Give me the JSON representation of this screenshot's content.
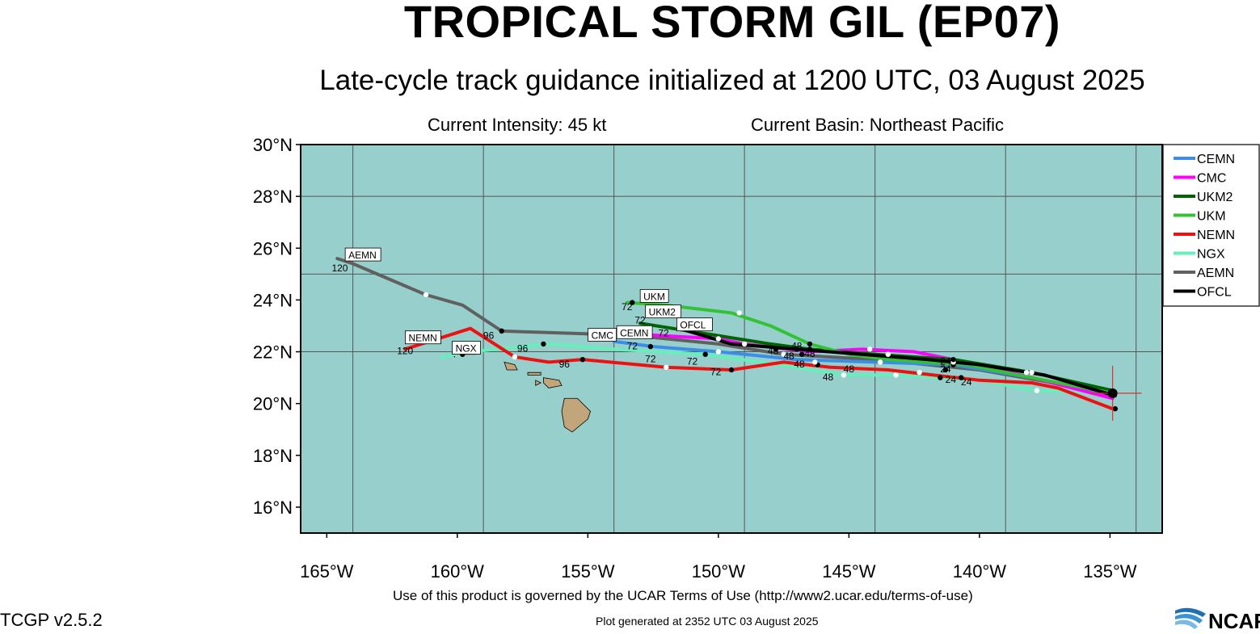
{
  "header": {
    "title": "TROPICAL STORM GIL (EP07)",
    "subtitle": "Late-cycle track guidance initialized at 1200 UTC, 03 August 2025",
    "current_intensity": "Current Intensity: 45 kt",
    "current_basin": "Current Basin: Northeast Pacific"
  },
  "footer": {
    "terms": "Use of this product is governed by the UCAR Terms of Use (http://www2.ucar.edu/terms-of-use)",
    "generated": "Plot generated at 2352 UTC   03 August 2025",
    "version": "TCGP v2.5.2",
    "logo_text": "NCAR"
  },
  "map": {
    "lon_range": [
      -166,
      -133
    ],
    "lat_range": [
      15,
      30
    ],
    "ocean_color": "#97cfcd",
    "land_color": "#c2a57a",
    "lat_ticks": [
      30,
      28,
      26,
      24,
      22,
      20,
      18,
      16
    ],
    "lat_tick_labels": [
      "30°N",
      "28°N",
      "26°N",
      "24°N",
      "22°N",
      "20°N",
      "18°N",
      "16°N"
    ],
    "lon_ticks": [
      -165,
      -160,
      -155,
      -150,
      -145,
      -140,
      -135
    ],
    "lon_tick_labels": [
      "165°W",
      "160°W",
      "155°W",
      "150°W",
      "145°W",
      "140°W",
      "135°W"
    ],
    "grid_lats": [
      22,
      25,
      28
    ],
    "grid_lons": [
      -164,
      -159,
      -154,
      -149,
      -144,
      -139,
      -134
    ],
    "storm_center": [
      -134.9,
      20.4
    ]
  },
  "legend": {
    "items": [
      {
        "name": "CEMN",
        "color": "#3a8ee6"
      },
      {
        "name": "CMC",
        "color": "#ff00ff"
      },
      {
        "name": "UKM2",
        "color": "#006400"
      },
      {
        "name": "UKM",
        "color": "#33c233"
      },
      {
        "name": "NEMN",
        "color": "#ee1111"
      },
      {
        "name": "NGX",
        "color": "#66eebb"
      },
      {
        "name": "AEMN",
        "color": "#606060"
      },
      {
        "name": "OFCL",
        "color": "#000000"
      }
    ]
  },
  "tracks": [
    {
      "name": "NGX",
      "color": "#66eebb",
      "points": [
        [
          -134.9,
          20.4
        ],
        [
          -137.8,
          20.5
        ],
        [
          -140.0,
          20.9
        ],
        [
          -141.5,
          21.0
        ],
        [
          -143.2,
          21.1
        ],
        [
          -145.2,
          21.1
        ],
        [
          -147.0,
          21.4
        ],
        [
          -150.5,
          21.9
        ],
        [
          -154.0,
          22.1
        ],
        [
          -156.5,
          22.3
        ],
        [
          -159.5,
          22.0
        ],
        [
          -160.6,
          21.8
        ]
      ],
      "markers": [
        [
          -137.8,
          20.5,
          "w"
        ],
        [
          -141.5,
          21.0,
          "b"
        ],
        [
          -143.2,
          21.1,
          "w"
        ],
        [
          -145.2,
          21.1,
          "w"
        ],
        [
          -150.5,
          21.9,
          "b"
        ],
        [
          -156.7,
          22.3,
          "b"
        ],
        [
          -159.8,
          21.9,
          "b"
        ]
      ],
      "tag": "NGX",
      "tag_pos": [
        -160.1,
        22.0
      ]
    },
    {
      "name": "NEMN",
      "color": "#ee1111",
      "points": [
        [
          -134.9,
          19.8
        ],
        [
          -137.0,
          20.6
        ],
        [
          -138.0,
          20.8
        ],
        [
          -140.0,
          20.9
        ],
        [
          -143.5,
          21.3
        ],
        [
          -145.7,
          21.4
        ],
        [
          -147.5,
          21.6
        ],
        [
          -149.5,
          21.3
        ],
        [
          -152.0,
          21.4
        ],
        [
          -155.2,
          21.7
        ],
        [
          -156.5,
          21.6
        ],
        [
          -157.8,
          21.8
        ],
        [
          -159.5,
          22.9
        ],
        [
          -162.0,
          22.1
        ]
      ],
      "markers": [
        [
          -140.7,
          21.0,
          "b"
        ],
        [
          -142.3,
          21.2,
          "w"
        ],
        [
          -146.2,
          21.5,
          "b"
        ],
        [
          -149.5,
          21.3,
          "b"
        ],
        [
          -152.0,
          21.4,
          "w"
        ],
        [
          -155.2,
          21.7,
          "b"
        ],
        [
          -157.8,
          21.8,
          "w"
        ]
      ],
      "tag": "NEMN",
      "tag_pos": [
        -161.9,
        22.4
      ]
    },
    {
      "name": "AEMN",
      "color": "#606060",
      "points": [
        [
          -134.9,
          20.4
        ],
        [
          -140.0,
          21.3
        ],
        [
          -144.0,
          21.7
        ],
        [
          -147.5,
          21.9
        ],
        [
          -150.0,
          22.3
        ],
        [
          -153.0,
          22.6
        ],
        [
          -155.2,
          22.7
        ],
        [
          -158.3,
          22.8
        ],
        [
          -159.8,
          23.8
        ],
        [
          -161.2,
          24.2
        ],
        [
          -164.0,
          25.4
        ],
        [
          -164.6,
          25.6
        ]
      ],
      "markers": [
        [
          -147.5,
          21.9,
          "w"
        ],
        [
          -153.1,
          22.6,
          "w"
        ],
        [
          -158.3,
          22.8,
          "b"
        ],
        [
          -161.2,
          24.2,
          "w"
        ]
      ],
      "tag": "AEMN",
      "tag_pos": [
        -164.2,
        25.6
      ]
    },
    {
      "name": "CEMN",
      "color": "#3a8ee6",
      "points": [
        [
          -134.9,
          20.3
        ],
        [
          -138.0,
          21.0
        ],
        [
          -141.0,
          21.5
        ],
        [
          -144.0,
          21.6
        ],
        [
          -147.0,
          21.7
        ],
        [
          -150.0,
          22.0
        ],
        [
          -152.5,
          22.2
        ],
        [
          -154.0,
          22.4
        ]
      ],
      "markers": [
        [
          -138.2,
          21.2,
          "w"
        ],
        [
          -141.0,
          21.5,
          "b"
        ],
        [
          -146.3,
          21.6,
          "w"
        ],
        [
          -150.0,
          22.0,
          "w"
        ],
        [
          -152.6,
          22.2,
          "b"
        ]
      ],
      "tag": "CEMN",
      "tag_pos": [
        -153.8,
        22.6
      ]
    },
    {
      "name": "CMC",
      "color": "#ff00ff",
      "points": [
        [
          -134.9,
          20.2
        ],
        [
          -138.0,
          21.0
        ],
        [
          -141.0,
          21.7
        ],
        [
          -142.5,
          22.0
        ],
        [
          -144.5,
          22.1
        ],
        [
          -146.5,
          22.0
        ],
        [
          -149.0,
          22.3
        ],
        [
          -150.0,
          22.5
        ],
        [
          -153.5,
          22.7
        ],
        [
          -154.5,
          22.6
        ]
      ],
      "markers": [
        [
          -138.0,
          21.2,
          "w"
        ],
        [
          -141.0,
          21.6,
          "w"
        ],
        [
          -143.5,
          21.9,
          "w"
        ],
        [
          -144.2,
          22.1,
          "w"
        ],
        [
          -146.8,
          21.9,
          "b"
        ],
        [
          -149.0,
          22.3,
          "w"
        ],
        [
          -150.0,
          22.5,
          "w"
        ],
        [
          -153.4,
          22.7,
          "b"
        ]
      ],
      "tag": "CMC",
      "tag_pos": [
        -154.9,
        22.5
      ]
    },
    {
      "name": "UKM2",
      "color": "#006400",
      "points": [
        [
          -134.9,
          20.5
        ],
        [
          -138.0,
          21.2
        ],
        [
          -141.0,
          21.7
        ],
        [
          -144.0,
          21.9
        ],
        [
          -146.5,
          22.1
        ],
        [
          -148.0,
          22.3
        ],
        [
          -150.5,
          22.7
        ],
        [
          -153.0,
          23.1
        ]
      ],
      "markers": [
        [
          -141.0,
          21.7,
          "b"
        ],
        [
          -146.5,
          22.1,
          "b"
        ],
        [
          -147.8,
          22.1,
          "b"
        ]
      ],
      "tag": "UKM2",
      "tag_pos": [
        -152.7,
        23.4
      ]
    },
    {
      "name": "UKM",
      "color": "#33c233",
      "points": [
        [
          -134.9,
          20.4
        ],
        [
          -137.5,
          20.9
        ],
        [
          -140.5,
          21.5
        ],
        [
          -143.5,
          21.7
        ],
        [
          -145.0,
          21.9
        ],
        [
          -146.5,
          22.3
        ],
        [
          -148.0,
          23.0
        ],
        [
          -149.5,
          23.5
        ],
        [
          -152.0,
          23.8
        ],
        [
          -153.5,
          23.9
        ]
      ],
      "markers": [
        [
          -143.8,
          21.6,
          "w"
        ],
        [
          -146.5,
          22.3,
          "b"
        ],
        [
          -149.2,
          23.5,
          "w"
        ],
        [
          -153.3,
          23.9,
          "b"
        ]
      ],
      "tag": "UKM",
      "tag_pos": [
        -152.9,
        24.0
      ]
    },
    {
      "name": "OFCL",
      "color": "#000000",
      "points": [
        [
          -134.8,
          20.3
        ],
        [
          -137.5,
          21.1
        ],
        [
          -140.0,
          21.5
        ],
        [
          -142.0,
          21.7
        ],
        [
          -144.5,
          21.9
        ],
        [
          -147.0,
          22.1
        ],
        [
          -149.5,
          22.3
        ],
        [
          -151.5,
          22.9
        ]
      ],
      "markers": [
        [
          -134.8,
          19.8,
          "b"
        ],
        [
          -141.3,
          21.3,
          "b"
        ],
        [
          -147.0,
          22.1,
          "b"
        ],
        [
          -151.5,
          22.9,
          "b"
        ]
      ],
      "tag": "OFCL",
      "tag_pos": [
        -151.5,
        22.9
      ]
    }
  ],
  "hour_labels": [
    {
      "text": "120",
      "pos": [
        -164.5,
        25.1
      ]
    },
    {
      "text": "120",
      "pos": [
        -162.0,
        21.9
      ]
    },
    {
      "text": "96",
      "pos": [
        -158.8,
        22.5
      ]
    },
    {
      "text": "96",
      "pos": [
        -157.5,
        22.0
      ]
    },
    {
      "text": "96",
      "pos": [
        -155.9,
        21.4
      ]
    },
    {
      "text": "72",
      "pos": [
        -153.5,
        23.6
      ]
    },
    {
      "text": "72",
      "pos": [
        -153.0,
        23.1
      ]
    },
    {
      "text": "72",
      "pos": [
        -152.1,
        22.6
      ]
    },
    {
      "text": "72",
      "pos": [
        -153.3,
        22.1
      ]
    },
    {
      "text": "72",
      "pos": [
        -152.6,
        21.6
      ]
    },
    {
      "text": "72",
      "pos": [
        -151.0,
        21.5
      ]
    },
    {
      "text": "72",
      "pos": [
        -150.1,
        21.1
      ]
    },
    {
      "text": "48",
      "pos": [
        -147.9,
        21.9
      ]
    },
    {
      "text": "48",
      "pos": [
        -147.0,
        22.1
      ]
    },
    {
      "text": "48",
      "pos": [
        -147.3,
        21.7
      ]
    },
    {
      "text": "48",
      "pos": [
        -146.9,
        21.4
      ]
    },
    {
      "text": "48",
      "pos": [
        -146.5,
        21.8
      ]
    },
    {
      "text": "48",
      "pos": [
        -145.8,
        20.9
      ]
    },
    {
      "text": "48",
      "pos": [
        -145.0,
        21.2
      ]
    },
    {
      "text": "24",
      "pos": [
        -141.3,
        21.5
      ]
    },
    {
      "text": "24",
      "pos": [
        -141.3,
        21.2
      ]
    },
    {
      "text": "24",
      "pos": [
        -141.1,
        20.8
      ]
    },
    {
      "text": "24",
      "pos": [
        -140.5,
        20.7
      ]
    }
  ],
  "islands": [
    {
      "name": "big-island",
      "points": [
        [
          -155.9,
          20.2
        ],
        [
          -155.4,
          20.2
        ],
        [
          -154.9,
          19.7
        ],
        [
          -155.0,
          19.4
        ],
        [
          -155.6,
          18.9
        ],
        [
          -155.9,
          19.1
        ],
        [
          -156.0,
          19.7
        ]
      ]
    },
    {
      "name": "maui",
      "points": [
        [
          -156.7,
          21.0
        ],
        [
          -156.1,
          20.9
        ],
        [
          -156.0,
          20.7
        ],
        [
          -156.5,
          20.6
        ],
        [
          -156.7,
          20.8
        ]
      ]
    },
    {
      "name": "molokai",
      "points": [
        [
          -157.3,
          21.2
        ],
        [
          -156.8,
          21.2
        ],
        [
          -156.8,
          21.1
        ],
        [
          -157.3,
          21.1
        ]
      ]
    },
    {
      "name": "lanai",
      "points": [
        [
          -157.0,
          20.9
        ],
        [
          -156.8,
          20.8
        ],
        [
          -157.0,
          20.7
        ]
      ]
    },
    {
      "name": "oahu",
      "points": [
        [
          -158.2,
          21.6
        ],
        [
          -157.8,
          21.5
        ],
        [
          -157.7,
          21.3
        ],
        [
          -158.1,
          21.3
        ]
      ]
    },
    {
      "name": "kauai",
      "points": [
        [
          -159.7,
          22.2
        ],
        [
          -159.3,
          22.2
        ],
        [
          -159.3,
          21.9
        ],
        [
          -159.7,
          21.9
        ]
      ]
    },
    {
      "name": "niihau",
      "points": [
        [
          -160.2,
          21.9
        ],
        [
          -160.1,
          21.9
        ],
        [
          -160.1,
          21.8
        ]
      ]
    }
  ]
}
